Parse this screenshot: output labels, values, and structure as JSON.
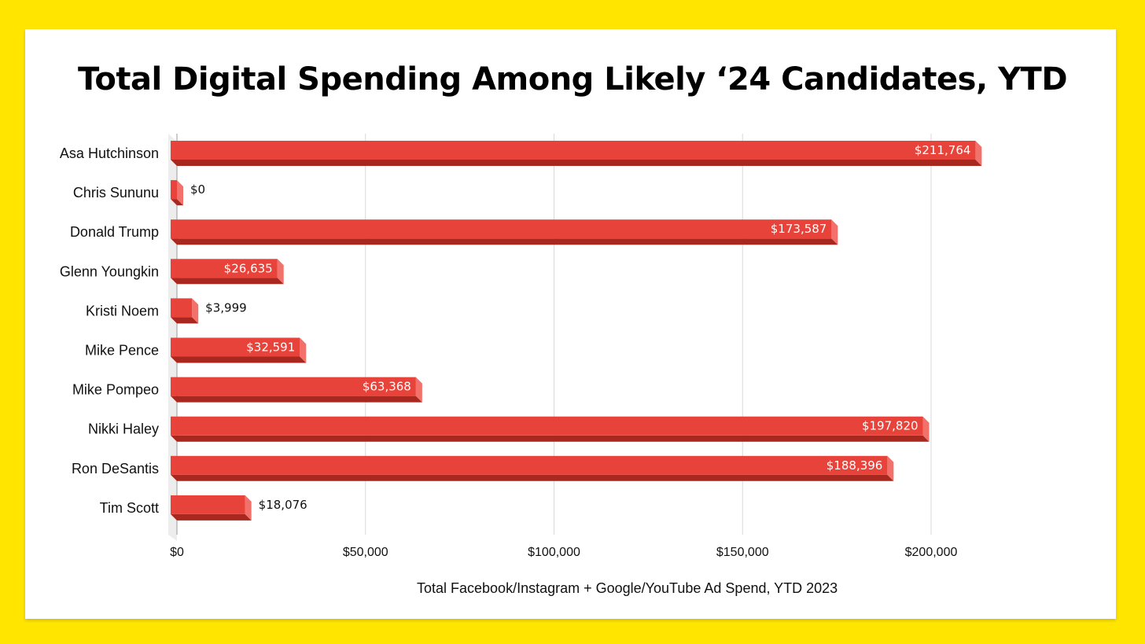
{
  "chart_data": {
    "type": "bar",
    "orientation": "horizontal",
    "title": "Total Digital Spending Among Likely ‘24 Candidates, YTD",
    "xlabel": "Total Facebook/Instagram + Google/YouTube Ad Spend, YTD 2023",
    "ylabel": "",
    "categories": [
      "Asa Hutchinson",
      "Chris Sununu",
      "Donald Trump",
      "Glenn Youngkin",
      "Kristi Noem",
      "Mike Pence",
      "Mike Pompeo",
      "Nikki Haley",
      "Ron DeSantis",
      "Tim Scott"
    ],
    "values": [
      211764,
      0,
      173587,
      26635,
      3999,
      32591,
      63368,
      197820,
      188396,
      18076
    ],
    "value_labels": [
      "$211,764",
      "$0",
      "$173,587",
      "$26,635",
      "$3,999",
      "$32,591",
      "$63,368",
      "$197,820",
      "$188,396",
      "$18,076"
    ],
    "xlim": [
      0,
      200000
    ],
    "x_ticks": [
      0,
      50000,
      100000,
      150000,
      200000
    ],
    "x_tick_labels": [
      "$0",
      "$50,000",
      "$100,000",
      "$150,000",
      "$200,000"
    ],
    "grid": "vertical",
    "legend": "none",
    "style": "3d-bars"
  },
  "colors": {
    "background": "#FFE500",
    "card": "#FFFFFF",
    "bar_front": "#E8433A",
    "bar_side": "#F2716A",
    "bar_bottom": "#A8271F",
    "grid": "#D9D9D9"
  }
}
